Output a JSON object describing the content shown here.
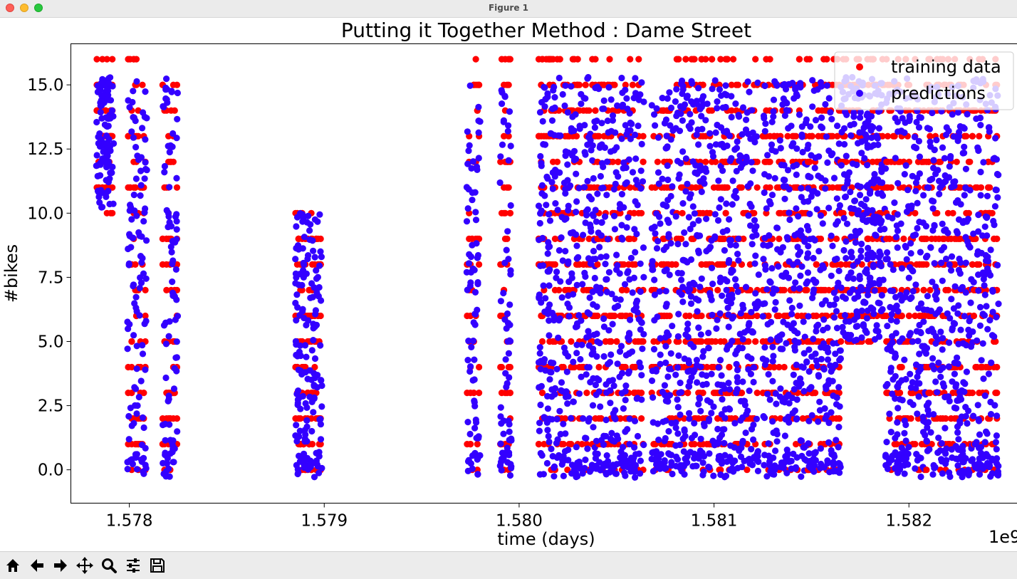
{
  "window": {
    "title": "Figure 1"
  },
  "chart_data": {
    "type": "scatter",
    "title": "Putting it Together Method : Dame Street",
    "xlabel": "time (days)",
    "ylabel": "#bikes",
    "x_offset_label": "1e9",
    "xlim": [
      1577700000,
      1582560000
    ],
    "ylim": [
      -1.3,
      16.6
    ],
    "xticks": [
      1578000000,
      1579000000,
      1580000000,
      1581000000,
      1582000000
    ],
    "xtick_labels": [
      "1.578",
      "1.579",
      "1.580",
      "1.581",
      "1.582"
    ],
    "yticks": [
      0,
      2.5,
      5,
      7.5,
      10,
      12.5,
      15
    ],
    "ytick_labels": [
      "0.0",
      "2.5",
      "5.0",
      "7.5",
      "10.0",
      "12.5",
      "15.0"
    ],
    "grid": false,
    "legend_position": "top-right",
    "series": [
      {
        "name": "training data",
        "color": "#ff0000",
        "marker": "circle",
        "points": "dense columns of integer bike counts 0–16 over 1577850000–1582450000"
      },
      {
        "name": "predictions",
        "color": "#3300ff",
        "marker": "circle",
        "points": "dense continuous predictions roughly -0.4–15.5 over 1577850000–1582450000"
      }
    ],
    "clusters": [
      {
        "x_start": 1577830000,
        "x_end": 1577920000,
        "y_min": 10.2,
        "y_max": 16
      },
      {
        "x_start": 1577990000,
        "x_end": 1578090000,
        "y_min": 0,
        "y_max": 16
      },
      {
        "x_start": 1578170000,
        "x_end": 1578250000,
        "y_min": 0,
        "y_max": 16
      },
      {
        "x_start": 1578850000,
        "x_end": 1578990000,
        "y_min": 0,
        "y_max": 10
      },
      {
        "x_start": 1579730000,
        "x_end": 1579800000,
        "y_min": 0,
        "y_max": 16
      },
      {
        "x_start": 1579900000,
        "x_end": 1579960000,
        "y_min": 0,
        "y_max": 16
      },
      {
        "x_start": 1580100000,
        "x_end": 1580390000,
        "y_min": 0,
        "y_max": 16
      },
      {
        "x_start": 1580390000,
        "x_end": 1580640000,
        "y_min": 0,
        "y_max": 16
      },
      {
        "x_start": 1580680000,
        "x_end": 1580790000,
        "y_min": 0,
        "y_max": 15
      },
      {
        "x_start": 1580800000,
        "x_end": 1581050000,
        "y_min": 0,
        "y_max": 16
      },
      {
        "x_start": 1581050000,
        "x_end": 1581230000,
        "y_min": 0,
        "y_max": 16
      },
      {
        "x_start": 1581250000,
        "x_end": 1581480000,
        "y_min": 0,
        "y_max": 16
      },
      {
        "x_start": 1581480000,
        "x_end": 1581650000,
        "y_min": 0,
        "y_max": 16
      },
      {
        "x_start": 1581650000,
        "x_end": 1581880000,
        "y_min": 5,
        "y_max": 16
      },
      {
        "x_start": 1581880000,
        "x_end": 1582090000,
        "y_min": 0,
        "y_max": 16
      },
      {
        "x_start": 1582090000,
        "x_end": 1582330000,
        "y_min": 0,
        "y_max": 16
      },
      {
        "x_start": 1582330000,
        "x_end": 1582460000,
        "y_min": 0,
        "y_max": 16
      }
    ]
  },
  "toolbar": {
    "buttons": [
      {
        "name": "home",
        "icon": "home-icon"
      },
      {
        "name": "back",
        "icon": "arrow-left-icon"
      },
      {
        "name": "forward",
        "icon": "arrow-right-icon"
      },
      {
        "name": "pan",
        "icon": "move-icon"
      },
      {
        "name": "zoom",
        "icon": "magnifier-icon"
      },
      {
        "name": "configure",
        "icon": "sliders-icon"
      },
      {
        "name": "save",
        "icon": "floppy-icon"
      }
    ]
  }
}
